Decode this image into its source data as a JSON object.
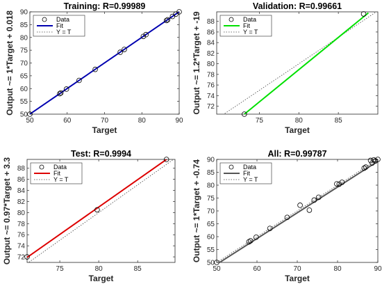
{
  "chart_data": [
    {
      "type": "scatter",
      "title": "Training: R=0.99989",
      "xlabel": "Target",
      "ylabel": "Output ~= 1*Target + 0.018",
      "xlim": [
        50,
        90
      ],
      "ylim": [
        50,
        90
      ],
      "xticks": [
        50,
        60,
        70,
        80,
        90
      ],
      "yticks": [
        50,
        55,
        60,
        65,
        70,
        75,
        80,
        85,
        90
      ],
      "legend_position": "top-left",
      "fit_color": "#0000b0",
      "series": [
        {
          "name": "Data",
          "x": [
            50,
            58,
            58.3,
            59.8,
            63.2,
            67.5,
            74.2,
            75.3,
            80.4,
            81.1,
            86.6,
            86.9,
            88.2,
            89.1,
            90
          ],
          "y": [
            50,
            58,
            58.3,
            59.8,
            63.2,
            67.5,
            74.2,
            75.3,
            80.4,
            81.1,
            86.6,
            86.9,
            88.2,
            89.1,
            90
          ]
        },
        {
          "name": "Fit",
          "x": [
            50,
            90
          ],
          "y": [
            50.018,
            90.018
          ]
        },
        {
          "name": "Y = T",
          "x": [
            50,
            90
          ],
          "y": [
            50,
            90
          ]
        }
      ]
    },
    {
      "type": "scatter",
      "title": "Validation: R=0.99661",
      "xlabel": "Target",
      "ylabel": "Output ~= 1.2*Target + -19",
      "xlim": [
        69.6,
        90
      ],
      "ylim": [
        70.5,
        89.8
      ],
      "xticks": [
        75,
        80,
        85
      ],
      "yticks": [
        72,
        74,
        76,
        78,
        80,
        82,
        84,
        86,
        88
      ],
      "legend_position": "top-left",
      "fit_color": "#00e000",
      "series": [
        {
          "name": "Data",
          "x": [
            73.1,
            88.2
          ],
          "y": [
            70.5,
            89.4
          ]
        },
        {
          "name": "Fit",
          "x": [
            73.1,
            88.8
          ],
          "y": [
            70.5,
            89.6
          ]
        },
        {
          "name": "Y = T",
          "x": [
            69.6,
            90
          ],
          "y": [
            69.6,
            90
          ]
        }
      ]
    },
    {
      "type": "scatter",
      "title": "Test: R=0.9994",
      "xlabel": "Target",
      "ylabel": "Output ~= 0.97*Target + 3.3",
      "xlim": [
        70.8,
        89.8
      ],
      "ylim": [
        71,
        89.6
      ],
      "xticks": [
        75,
        80,
        85
      ],
      "yticks": [
        72,
        74,
        76,
        78,
        80,
        82,
        84,
        86,
        88
      ],
      "legend_position": "top-left",
      "fit_color": "#dd0000",
      "series": [
        {
          "name": "Data",
          "x": [
            70.8,
            79.8,
            88.7
          ],
          "y": [
            72,
            80.5,
            89.6
          ]
        },
        {
          "name": "Fit",
          "x": [
            70.8,
            88.7
          ],
          "y": [
            71.9,
            89.6
          ]
        },
        {
          "name": "Y = T",
          "x": [
            70.8,
            89.8
          ],
          "y": [
            70.8,
            89.8
          ]
        }
      ]
    },
    {
      "type": "scatter",
      "title": "All: R=0.99787",
      "xlabel": "Target",
      "ylabel": "Output ~= 1*Target + -0.74",
      "xlim": [
        50,
        90
      ],
      "ylim": [
        50,
        90
      ],
      "xticks": [
        50,
        60,
        70,
        80,
        90
      ],
      "yticks": [
        50,
        55,
        60,
        65,
        70,
        75,
        80,
        85,
        90
      ],
      "legend_position": "top-left",
      "fit_color": "#555555",
      "series": [
        {
          "name": "Data",
          "x": [
            50,
            58,
            58.4,
            59.8,
            63.2,
            67.5,
            70.7,
            73,
            74.2,
            75.3,
            79.8,
            80.4,
            81.1,
            86.6,
            87,
            88.2,
            88.6,
            89,
            89.4,
            90
          ],
          "y": [
            50,
            58,
            58.4,
            59.8,
            63.2,
            67.5,
            72.2,
            70.3,
            74.2,
            75.3,
            80.5,
            80.4,
            81.1,
            86.6,
            87,
            89.6,
            88.6,
            89.8,
            89.4,
            90
          ]
        },
        {
          "name": "Fit",
          "x": [
            50,
            90
          ],
          "y": [
            49.26,
            89.26
          ]
        },
        {
          "name": "Y = T",
          "x": [
            50,
            90
          ],
          "y": [
            50,
            90
          ]
        }
      ]
    }
  ]
}
